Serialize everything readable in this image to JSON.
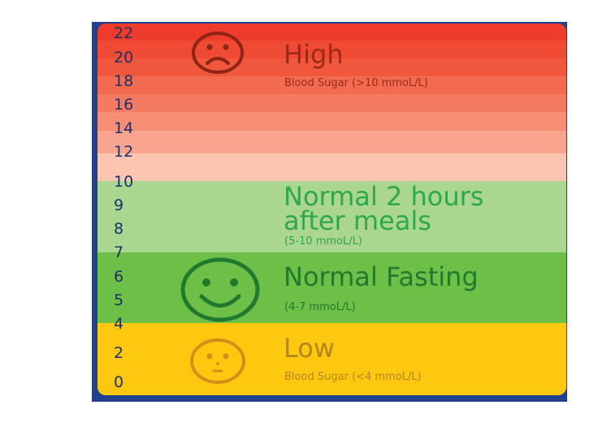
{
  "scale_ticks": [
    "22",
    "20",
    "18",
    "16",
    "14",
    "12",
    "10",
    "9",
    "8",
    "7",
    "6",
    "5",
    "4",
    "2",
    "0"
  ],
  "zones": {
    "high": {
      "title": "High",
      "subtitle": "Blood Sugar (>10 mmoL/L)",
      "color": "#9b2a1a",
      "icon": "sad-face-icon"
    },
    "after_meals": {
      "title_line1": "Normal 2 hours",
      "title_line2": "after meals",
      "subtitle": "(5-10 mmoL/L)",
      "color": "#2ea84a"
    },
    "fasting": {
      "title": "Normal Fasting",
      "subtitle": "(4-7 mmoL/L)",
      "color": "#1f7a2e",
      "icon": "happy-face-icon"
    },
    "low": {
      "title": "Low",
      "subtitle": "Blood Sugar (<4 mmoL/L)",
      "color": "#b5861d",
      "icon": "neutral-face-icon"
    }
  }
}
